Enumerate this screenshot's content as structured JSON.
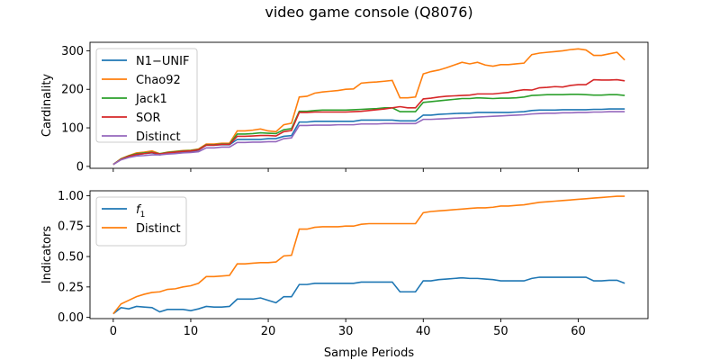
{
  "figure": {
    "title": "video game console (Q8076)"
  },
  "chart_data": [
    {
      "type": "line",
      "xlabel": "",
      "ylabel": "Cardinality",
      "xlim": [
        -3,
        69
      ],
      "ylim": [
        -5,
        322
      ],
      "xticks": [
        0,
        10,
        20,
        30,
        40,
        50,
        60
      ],
      "yticks": [
        0,
        100,
        200,
        300
      ],
      "legend_position": "upper-left",
      "x_start": 0,
      "series": [
        {
          "name": "N1−UNIF",
          "color": "#1f77b4",
          "values": [
            5,
            18,
            25,
            30,
            33,
            35,
            30,
            34,
            35,
            37,
            38,
            42,
            55,
            55,
            56,
            56,
            70,
            70,
            70,
            70,
            72,
            72,
            78,
            80,
            115,
            115,
            117,
            117,
            117,
            117,
            117,
            117,
            120,
            120,
            120,
            120,
            120,
            118,
            118,
            118,
            133,
            133,
            135,
            136,
            137,
            138,
            138,
            140,
            140,
            140,
            140,
            140,
            141,
            142,
            145,
            146,
            146,
            146,
            147,
            147,
            147,
            147,
            148,
            148,
            149,
            149,
            149
          ]
        },
        {
          "name": "Chao92",
          "color": "#ff7f0e",
          "values": [
            5,
            20,
            28,
            35,
            37,
            40,
            33,
            37,
            39,
            41,
            42,
            45,
            58,
            58,
            60,
            60,
            92,
            92,
            94,
            97,
            92,
            90,
            108,
            112,
            180,
            182,
            190,
            193,
            195,
            197,
            200,
            201,
            216,
            218,
            219,
            221,
            223,
            178,
            178,
            180,
            240,
            246,
            250,
            256,
            263,
            270,
            266,
            270,
            263,
            260,
            264,
            264,
            266,
            268,
            290,
            294,
            296,
            298,
            300,
            303,
            305,
            302,
            288,
            288,
            292,
            296,
            276
          ]
        },
        {
          "name": "Jack1",
          "color": "#2ca02c",
          "values": [
            5,
            19,
            27,
            33,
            35,
            37,
            33,
            36,
            38,
            40,
            41,
            44,
            56,
            56,
            58,
            58,
            84,
            84,
            85,
            87,
            86,
            85,
            95,
            98,
            143,
            143,
            145,
            146,
            146,
            146,
            146,
            147,
            148,
            149,
            150,
            152,
            152,
            142,
            142,
            142,
            166,
            168,
            170,
            172,
            174,
            176,
            176,
            178,
            177,
            176,
            177,
            177,
            178,
            180,
            184,
            185,
            186,
            186,
            186,
            187,
            187,
            186,
            185,
            185,
            186,
            186,
            184
          ]
        },
        {
          "name": "SOR",
          "color": "#d62728",
          "values": [
            5,
            18,
            26,
            31,
            33,
            36,
            32,
            35,
            37,
            39,
            40,
            43,
            55,
            55,
            57,
            57,
            78,
            78,
            79,
            80,
            80,
            79,
            90,
            93,
            140,
            140,
            141,
            141,
            141,
            141,
            141,
            142,
            143,
            145,
            147,
            149,
            152,
            155,
            152,
            152,
            175,
            177,
            180,
            182,
            183,
            184,
            185,
            188,
            188,
            188,
            190,
            192,
            196,
            199,
            198,
            204,
            205,
            207,
            206,
            210,
            212,
            212,
            225,
            224,
            224,
            225,
            222
          ]
        },
        {
          "name": "Distinct",
          "color": "#9467bd",
          "values": [
            5,
            17,
            23,
            27,
            28,
            30,
            30,
            32,
            33,
            35,
            36,
            38,
            48,
            48,
            50,
            50,
            62,
            62,
            63,
            63,
            64,
            64,
            72,
            74,
            106,
            106,
            107,
            107,
            107,
            108,
            108,
            108,
            110,
            110,
            110,
            111,
            111,
            111,
            111,
            111,
            122,
            122,
            123,
            124,
            125,
            126,
            127,
            128,
            129,
            130,
            131,
            132,
            133,
            134,
            136,
            137,
            138,
            138,
            139,
            139,
            140,
            140,
            141,
            141,
            142,
            142,
            142
          ]
        }
      ]
    },
    {
      "type": "line",
      "xlabel": "Sample Periods",
      "ylabel": "Indicators",
      "xlim": [
        -3,
        69
      ],
      "ylim": [
        -0.01,
        1.04
      ],
      "xticks": [
        0,
        10,
        20,
        30,
        40,
        50,
        60
      ],
      "yticks": [
        0.0,
        0.25,
        0.5,
        0.75,
        1.0
      ],
      "ytick_labels": [
        "0.00",
        "0.25",
        "0.50",
        "0.75",
        "1.00"
      ],
      "legend_position": "upper-left",
      "x_start": 0,
      "series": [
        {
          "name": "f_1",
          "label_main": "f",
          "label_sub": "1",
          "color": "#1f77b4",
          "values": [
            0.03,
            0.08,
            0.07,
            0.09,
            0.085,
            0.08,
            0.045,
            0.065,
            0.065,
            0.065,
            0.055,
            0.07,
            0.09,
            0.085,
            0.085,
            0.09,
            0.15,
            0.15,
            0.15,
            0.16,
            0.14,
            0.12,
            0.17,
            0.17,
            0.27,
            0.27,
            0.28,
            0.28,
            0.28,
            0.28,
            0.28,
            0.28,
            0.29,
            0.29,
            0.29,
            0.29,
            0.29,
            0.21,
            0.21,
            0.21,
            0.3,
            0.3,
            0.31,
            0.315,
            0.32,
            0.325,
            0.32,
            0.32,
            0.315,
            0.31,
            0.3,
            0.3,
            0.3,
            0.3,
            0.32,
            0.33,
            0.33,
            0.33,
            0.33,
            0.33,
            0.33,
            0.33,
            0.3,
            0.3,
            0.305,
            0.305,
            0.28
          ]
        },
        {
          "name": "Distinct",
          "color": "#ff7f0e",
          "values": [
            0.03,
            0.11,
            0.14,
            0.17,
            0.19,
            0.205,
            0.21,
            0.23,
            0.235,
            0.25,
            0.26,
            0.28,
            0.335,
            0.335,
            0.34,
            0.345,
            0.44,
            0.44,
            0.445,
            0.45,
            0.45,
            0.455,
            0.505,
            0.51,
            0.725,
            0.725,
            0.74,
            0.745,
            0.745,
            0.745,
            0.75,
            0.75,
            0.765,
            0.77,
            0.77,
            0.77,
            0.77,
            0.77,
            0.77,
            0.77,
            0.86,
            0.87,
            0.875,
            0.88,
            0.885,
            0.89,
            0.895,
            0.9,
            0.9,
            0.905,
            0.915,
            0.915,
            0.92,
            0.925,
            0.935,
            0.945,
            0.95,
            0.955,
            0.96,
            0.965,
            0.97,
            0.975,
            0.98,
            0.985,
            0.99,
            0.995,
            0.995
          ]
        }
      ]
    }
  ]
}
